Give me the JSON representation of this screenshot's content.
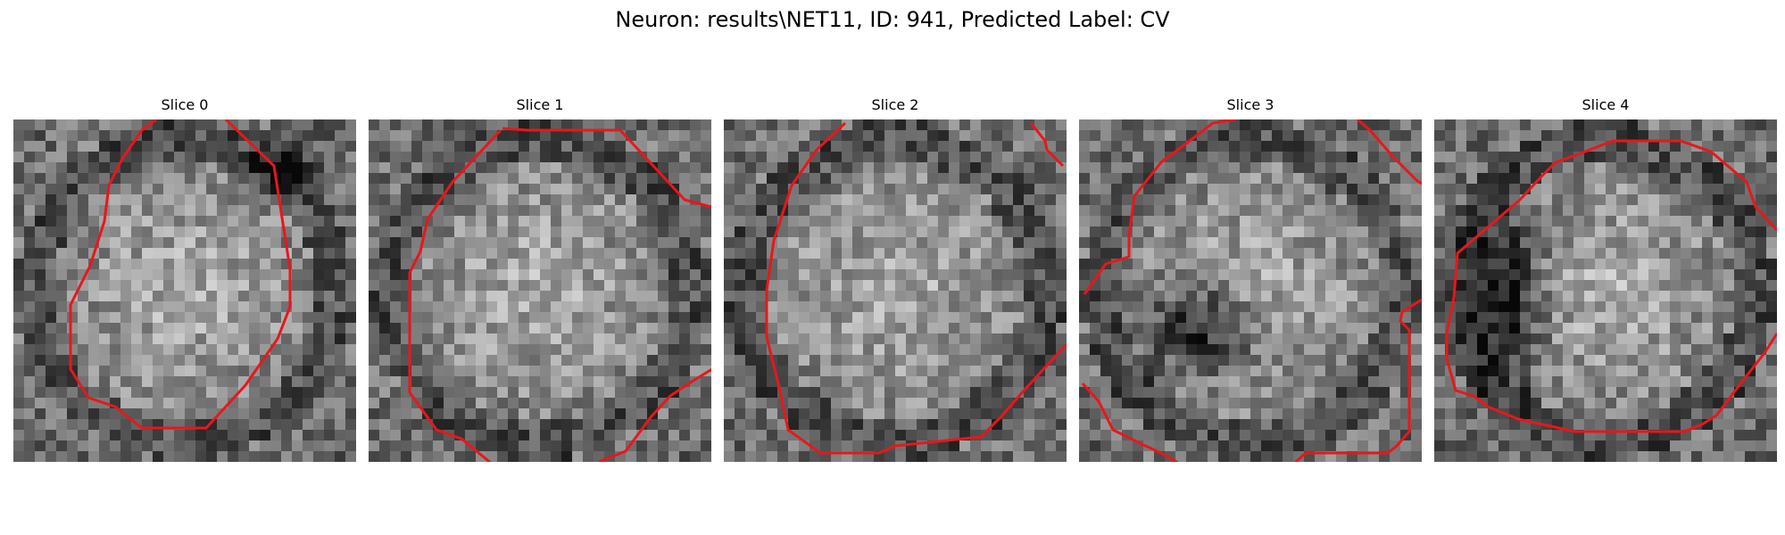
{
  "figure": {
    "title": "Neuron: results\\NET11, ID: 941, Predicted Label: CV"
  },
  "panels": [
    {
      "title": "Slice 0",
      "image": "grayscale-microscopy-tile",
      "mask": "dark-blob-low"
    },
    {
      "title": "Slice 1",
      "image": "grayscale-microscopy-tile",
      "mask": "none"
    },
    {
      "title": "Slice 2",
      "image": "grayscale-microscopy-tile",
      "mask": "none"
    },
    {
      "title": "Slice 3",
      "image": "grayscale-microscopy-tile",
      "mask": "dark-blob-center"
    },
    {
      "title": "Slice 4",
      "image": "grayscale-microscopy-tile",
      "mask": "dark-band-left"
    }
  ],
  "colors": {
    "contour": "#e8171b"
  }
}
